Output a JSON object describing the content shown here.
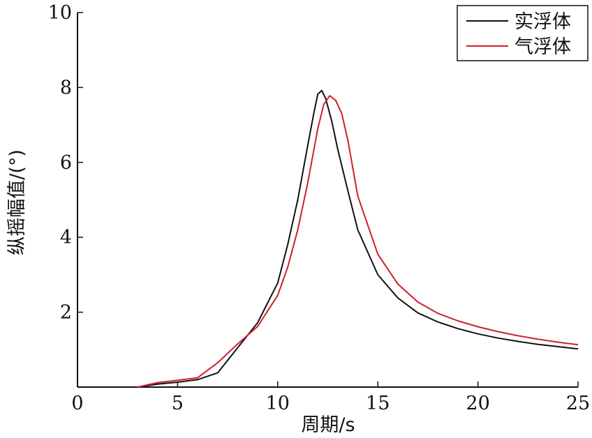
{
  "chart_data": {
    "type": "line",
    "xlabel": "周期/s",
    "ylabel": "纵摇幅值/(°)",
    "xlim": [
      0,
      25
    ],
    "ylim": [
      0,
      10
    ],
    "xticks": [
      "0",
      "5",
      "10",
      "15",
      "20",
      "25"
    ],
    "yticks": [
      "2",
      "4",
      "6",
      "8",
      "10"
    ],
    "grid": false,
    "legend_position": "top-right",
    "series": [
      {
        "name": "实浮体",
        "color": "#111111",
        "x": [
          3,
          4,
          5,
          6,
          7,
          8,
          9,
          10,
          10.5,
          11,
          11.5,
          11.8,
          12,
          12.2,
          12.4,
          12.7,
          13,
          13.5,
          14,
          15,
          16,
          17,
          18,
          19,
          20,
          21,
          22,
          23,
          24,
          25
        ],
        "y": [
          0.0,
          0.08,
          0.13,
          0.2,
          0.38,
          1.05,
          1.72,
          2.78,
          3.8,
          5.0,
          6.45,
          7.3,
          7.82,
          7.92,
          7.7,
          7.1,
          6.35,
          5.25,
          4.2,
          3.0,
          2.38,
          1.98,
          1.74,
          1.56,
          1.42,
          1.31,
          1.22,
          1.14,
          1.08,
          1.02
        ]
      },
      {
        "name": "气浮体",
        "color": "#d01e2a",
        "x": [
          3,
          4,
          5,
          6,
          7,
          8,
          9,
          10,
          10.5,
          11,
          11.5,
          12,
          12.3,
          12.6,
          12.9,
          13.2,
          13.5,
          14,
          15,
          16,
          17,
          18,
          19,
          20,
          21,
          22,
          23,
          24,
          25
        ],
        "y": [
          0.0,
          0.12,
          0.18,
          0.25,
          0.65,
          1.15,
          1.62,
          2.45,
          3.2,
          4.2,
          5.45,
          6.9,
          7.55,
          7.78,
          7.65,
          7.3,
          6.6,
          5.1,
          3.55,
          2.75,
          2.27,
          1.97,
          1.77,
          1.61,
          1.48,
          1.37,
          1.28,
          1.2,
          1.13
        ]
      }
    ]
  }
}
